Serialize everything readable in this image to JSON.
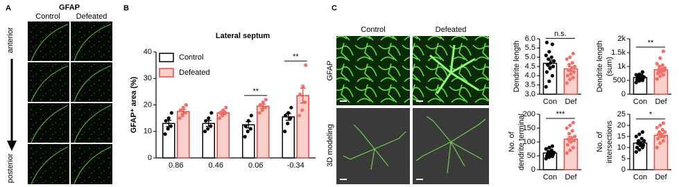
{
  "panel_a": {
    "label": "A",
    "title": "GFAP",
    "columns": [
      "Control",
      "Defeated"
    ],
    "top": "anterior",
    "bottom": "posterior"
  },
  "panel_c": {
    "label": "C",
    "columns": [
      "Control",
      "Defeated"
    ],
    "rows": [
      "GFAP",
      "3D modeling"
    ]
  },
  "chart_data": [
    {
      "type": "bar",
      "panel": "B",
      "title": "Lateral septum",
      "ylabel": [
        "GFAP⁺ area (%)"
      ],
      "categories": [
        "0.86",
        "0.46",
        "0.06",
        "-0.34"
      ],
      "ylim": [
        0,
        40
      ],
      "yticks": [
        0,
        10,
        20,
        30,
        40
      ],
      "legend": "top-left",
      "series": [
        {
          "name": "Control",
          "color": "#000000",
          "fill": "#ffffff",
          "point_color": "#000000",
          "values": [
            13,
            13,
            12.5,
            15.5
          ],
          "errors": [
            1.2,
            1.1,
            1.2,
            1.3
          ],
          "points": [
            [
              9,
              11,
              12,
              14,
              15,
              17
            ],
            [
              10,
              11,
              12,
              14,
              15,
              17
            ],
            [
              8,
              10,
              11,
              12,
              14,
              16
            ],
            [
              10,
              13,
              15,
              16,
              17,
              19
            ]
          ]
        },
        {
          "name": "Defeated",
          "color": "#e8473f",
          "fill": "#f9d0cc",
          "point_color": "#f07068",
          "values": [
            17.5,
            17,
            19.5,
            23.5
          ],
          "errors": [
            0.8,
            0.7,
            0.8,
            2.8
          ],
          "points": [
            [
              15,
              16,
              17,
              18,
              19,
              20
            ],
            [
              15,
              16,
              17,
              17,
              18,
              19
            ],
            [
              17,
              18,
              19,
              20,
              21,
              22
            ],
            [
              16,
              18,
              21,
              24,
              27,
              35
            ]
          ]
        }
      ],
      "annotations": [
        {
          "text": "**",
          "category": 2
        },
        {
          "text": "**",
          "category": 3
        }
      ]
    },
    {
      "type": "bar",
      "ylabel": [
        "Dendrite length"
      ],
      "categories": [
        "Con",
        "Def"
      ],
      "ylim": [
        3,
        6
      ],
      "yticks": [
        {
          "value": 3,
          "label": "3.0"
        },
        3.5,
        {
          "value": 4,
          "label": "4.0"
        },
        4.5,
        {
          "value": 5,
          "label": "5.0"
        },
        5.5,
        {
          "value": 6,
          "label": "6.0"
        }
      ],
      "colors": [
        "#000000",
        "#e8473f"
      ],
      "fills": [
        "#ffffff",
        "#f9d0cc"
      ],
      "point_colors": [
        "#000000",
        "#f07068"
      ],
      "values": [
        4.67,
        4.37
      ],
      "errors": [
        0.18,
        0.12
      ],
      "points": [
        [
          3.4,
          3.7,
          4.0,
          4.2,
          4.4,
          4.5,
          4.6,
          4.7,
          4.8,
          4.9,
          5.0,
          5.1,
          5.3,
          5.7,
          5.8
        ],
        [
          3.6,
          3.8,
          3.9,
          4.0,
          4.1,
          4.2,
          4.3,
          4.4,
          4.5,
          4.6,
          4.7,
          4.9,
          5.0,
          5.2
        ]
      ],
      "annotations": [
        {
          "text": "n.s."
        }
      ]
    },
    {
      "type": "bar",
      "ylabel": [
        "Dendrite length",
        "(sum)"
      ],
      "categories": [
        "Con",
        "Def"
      ],
      "ylim": [
        0,
        2000
      ],
      "yticks": [
        0,
        500,
        {
          "value": 1000,
          "label": "1k"
        },
        {
          "value": 1500,
          "label": "1.5k"
        },
        {
          "value": 2000,
          "label": "2k"
        }
      ],
      "colors": [
        "#000000",
        "#e8473f"
      ],
      "fills": [
        "#ffffff",
        "#f9d0cc"
      ],
      "point_colors": [
        "#000000",
        "#f07068"
      ],
      "values": [
        600,
        880
      ],
      "errors": [
        30,
        70
      ],
      "points": [
        [
          420,
          480,
          500,
          520,
          550,
          580,
          600,
          610,
          620,
          650,
          680,
          700,
          720,
          800
        ],
        [
          550,
          650,
          700,
          750,
          800,
          850,
          880,
          900,
          950,
          1000,
          1050,
          1100,
          1300,
          1550
        ]
      ],
      "annotations": [
        {
          "text": "**"
        }
      ]
    },
    {
      "type": "bar",
      "ylabel": [
        "No. of",
        "dendrite terminal"
      ],
      "categories": [
        "Con",
        "Def"
      ],
      "ylim": [
        0,
        200
      ],
      "yticks": [
        0,
        50,
        100,
        150,
        200
      ],
      "colors": [
        "#000000",
        "#e8473f"
      ],
      "fills": [
        "#ffffff",
        "#f9d0cc"
      ],
      "point_colors": [
        "#000000",
        "#f07068"
      ],
      "values": [
        60,
        110
      ],
      "errors": [
        4,
        9
      ],
      "points": [
        [
          40,
          45,
          48,
          50,
          52,
          55,
          58,
          60,
          62,
          65,
          70,
          75,
          80,
          85
        ],
        [
          60,
          70,
          80,
          90,
          100,
          105,
          110,
          115,
          120,
          130,
          140,
          150,
          160,
          170
        ]
      ],
      "annotations": [
        {
          "text": "***"
        }
      ]
    },
    {
      "type": "bar",
      "ylabel": [
        "No. of",
        "intersections"
      ],
      "categories": [
        "Con",
        "Def"
      ],
      "ylim": [
        0,
        25
      ],
      "yticks": [
        0,
        5,
        10,
        15,
        20,
        25
      ],
      "colors": [
        "#000000",
        "#e8473f"
      ],
      "fills": [
        "#ffffff",
        "#f9d0cc"
      ],
      "point_colors": [
        "#000000",
        "#f07068"
      ],
      "values": [
        12,
        15.5
      ],
      "errors": [
        0.7,
        0.8
      ],
      "points": [
        [
          8,
          9,
          10,
          10,
          11,
          11,
          12,
          12,
          13,
          13,
          14,
          15,
          16,
          17
        ],
        [
          10,
          12,
          13,
          14,
          15,
          15,
          16,
          16,
          17,
          17,
          18,
          19,
          20,
          21
        ]
      ],
      "annotations": [
        {
          "text": "*"
        }
      ]
    }
  ]
}
